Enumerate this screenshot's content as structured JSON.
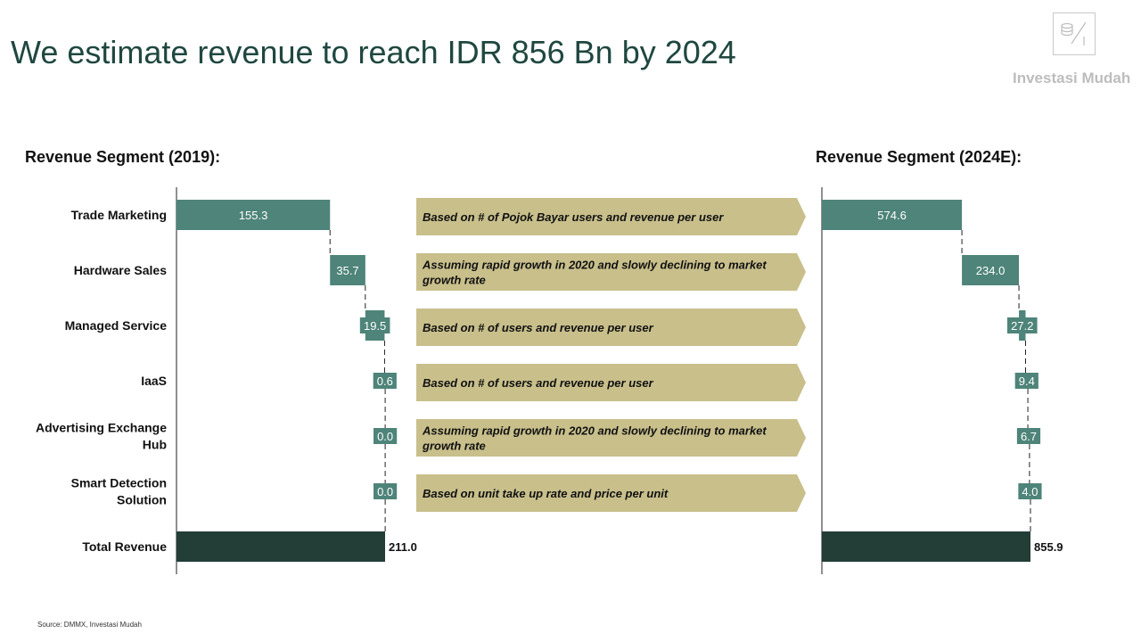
{
  "title": "We estimate revenue to reach IDR 856 Bn by 2024",
  "logo": {
    "name": "Investasi Mudah"
  },
  "left_heading": "Revenue Segment (2019):",
  "right_heading": "Revenue Segment (2024E):",
  "source": "Source: DMMX,  Investasi Mudah",
  "colors": {
    "segment": "#4e8479",
    "total": "#233d37",
    "arrow": "#c8bf8b",
    "title": "#1f4740"
  },
  "chart_data": [
    {
      "type": "bar",
      "subtype": "waterfall",
      "title": "Revenue Segment (2019):",
      "categories": [
        "Trade Marketing",
        "Hardware Sales",
        "Managed Service",
        "IaaS",
        "Advertising Exchange Hub",
        "Smart Detection Solution",
        "Total Revenue"
      ],
      "values": [
        155.3,
        35.7,
        19.5,
        0.6,
        0.0,
        0.0,
        211.0
      ],
      "value_labels": [
        "155.3",
        "35.7",
        "19.5",
        "0.6",
        "0.0",
        "0.0",
        "211.0"
      ],
      "xlim": [
        0,
        211.0
      ]
    },
    {
      "type": "bar",
      "subtype": "waterfall",
      "title": "Revenue Segment (2024E):",
      "categories": [
        "Trade Marketing",
        "Hardware Sales",
        "Managed Service",
        "IaaS",
        "Advertising Exchange Hub",
        "Smart Detection Solution",
        "Total Revenue"
      ],
      "values": [
        574.6,
        234.0,
        27.2,
        9.4,
        6.7,
        4.0,
        855.9
      ],
      "value_labels": [
        "574.6",
        "234.0",
        "27.2",
        "9.4",
        "6.7",
        "4.0",
        "855.9"
      ],
      "xlim": [
        0,
        855.9
      ]
    }
  ],
  "row_labels": [
    [
      "Trade Marketing"
    ],
    [
      "Hardware Sales"
    ],
    [
      "Managed Service"
    ],
    [
      "IaaS"
    ],
    [
      "Advertising Exchange",
      "Hub"
    ],
    [
      "Smart Detection",
      "Solution"
    ],
    [
      "Total Revenue"
    ]
  ],
  "assumptions": [
    [
      "Based on # of Pojok Bayar users and revenue per user"
    ],
    [
      "Assuming rapid growth in 2020  and slowly declining to market",
      "growth rate"
    ],
    [
      "Based on # of users and revenue per user"
    ],
    [
      "Based on # of users and revenue per user"
    ],
    [
      "Assuming rapid growth in 2020  and slowly declining to market",
      "growth rate"
    ],
    [
      "Based on unit take up rate and price per unit"
    ]
  ]
}
